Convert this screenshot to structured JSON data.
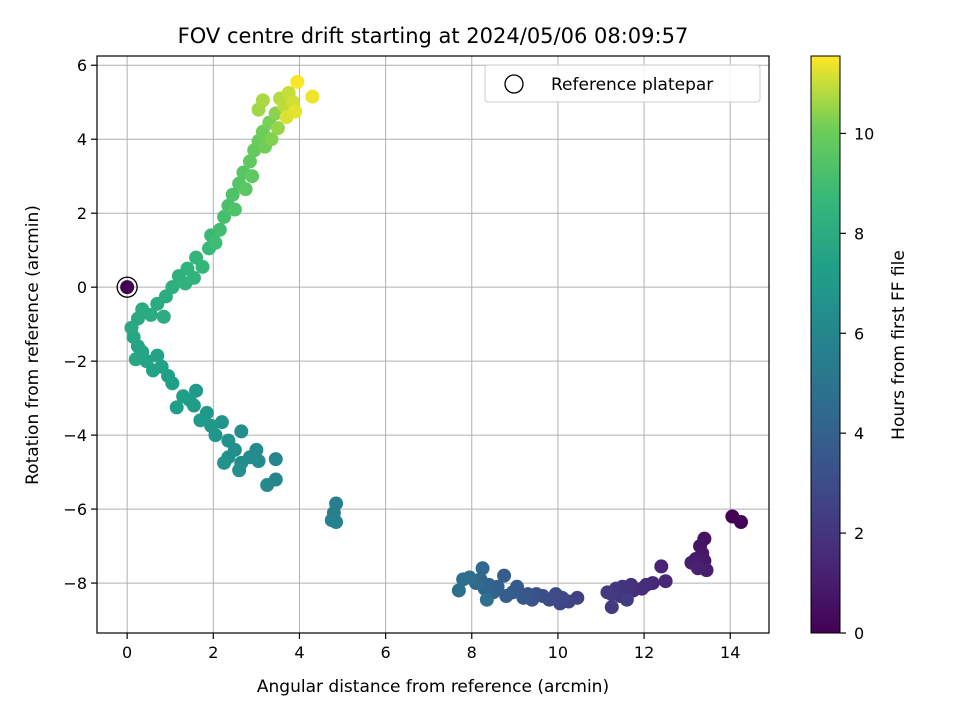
{
  "chart_data": {
    "type": "scatter",
    "title": "FOV centre drift starting at 2024/05/06 08:09:57",
    "xlabel": "Angular distance from reference (arcmin)",
    "ylabel": "Rotation from reference (arcmin)",
    "xlim": [
      -0.7,
      14.9
    ],
    "ylim": [
      -9.35,
      6.25
    ],
    "xticks": [
      0,
      2,
      4,
      6,
      8,
      10,
      12,
      14
    ],
    "yticks": [
      -8,
      -6,
      -4,
      -2,
      0,
      2,
      4,
      6
    ],
    "grid": true,
    "legend": {
      "placement": "top-right",
      "entries": [
        "Reference platepar"
      ]
    },
    "reference_point": {
      "x": 0,
      "y": 0
    },
    "colorbar": {
      "label": "Hours from first FF file",
      "min": 0,
      "max": 11.55,
      "ticks": [
        0,
        2,
        4,
        6,
        8,
        10
      ],
      "colormap": "viridis"
    },
    "series": [
      {
        "points": [
          [
            14.05,
            -6.2,
            0.05
          ],
          [
            14.25,
            -6.35,
            0.1
          ],
          [
            13.4,
            -6.8,
            0.6
          ],
          [
            13.3,
            -7.0,
            0.7
          ],
          [
            13.35,
            -7.2,
            0.8
          ],
          [
            13.4,
            -7.4,
            0.9
          ],
          [
            13.2,
            -7.35,
            1.0
          ],
          [
            13.1,
            -7.45,
            1.05
          ],
          [
            13.45,
            -7.65,
            1.1
          ],
          [
            13.25,
            -7.6,
            1.2
          ],
          [
            12.4,
            -7.55,
            1.3
          ],
          [
            12.5,
            -7.95,
            1.4
          ],
          [
            12.2,
            -8.0,
            1.5
          ],
          [
            12.05,
            -8.05,
            1.6
          ],
          [
            11.95,
            -8.15,
            1.7
          ],
          [
            11.75,
            -8.2,
            1.8
          ],
          [
            11.7,
            -8.05,
            1.85
          ],
          [
            11.6,
            -8.25,
            1.9
          ],
          [
            11.5,
            -8.1,
            1.95
          ],
          [
            11.45,
            -8.35,
            2.0
          ],
          [
            11.35,
            -8.15,
            2.1
          ],
          [
            11.25,
            -8.3,
            2.15
          ],
          [
            11.15,
            -8.25,
            2.2
          ],
          [
            11.25,
            -8.65,
            2.25
          ],
          [
            11.6,
            -8.45,
            2.3
          ],
          [
            10.45,
            -8.4,
            2.5
          ],
          [
            10.25,
            -8.5,
            2.6
          ],
          [
            10.05,
            -8.55,
            2.7
          ],
          [
            10.1,
            -8.4,
            2.8
          ],
          [
            9.95,
            -8.3,
            2.9
          ],
          [
            9.8,
            -8.45,
            3.0
          ],
          [
            9.65,
            -8.35,
            3.1
          ],
          [
            9.5,
            -8.3,
            3.2
          ],
          [
            9.4,
            -8.45,
            3.3
          ],
          [
            9.3,
            -8.3,
            3.4
          ],
          [
            9.2,
            -8.4,
            3.5
          ],
          [
            9.05,
            -8.1,
            3.6
          ],
          [
            8.95,
            -8.25,
            3.7
          ],
          [
            8.8,
            -8.35,
            3.8
          ],
          [
            8.75,
            -7.8,
            3.85
          ],
          [
            8.6,
            -8.1,
            3.9
          ],
          [
            8.5,
            -8.25,
            4.0
          ],
          [
            8.4,
            -8.05,
            4.1
          ],
          [
            8.3,
            -8.15,
            4.2
          ],
          [
            8.2,
            -7.9,
            4.3
          ],
          [
            8.25,
            -7.6,
            4.4
          ],
          [
            8.1,
            -8.0,
            4.5
          ],
          [
            7.95,
            -7.85,
            4.6
          ],
          [
            7.8,
            -7.9,
            4.7
          ],
          [
            7.7,
            -8.2,
            4.8
          ],
          [
            8.35,
            -8.45,
            4.85
          ],
          [
            4.85,
            -5.85,
            5.5
          ],
          [
            4.8,
            -6.1,
            5.6
          ],
          [
            4.75,
            -6.3,
            5.7
          ],
          [
            4.85,
            -6.35,
            5.75
          ],
          [
            3.45,
            -5.2,
            6.0
          ],
          [
            3.45,
            -4.65,
            6.05
          ],
          [
            3.25,
            -5.35,
            6.1
          ],
          [
            3.05,
            -4.7,
            6.2
          ],
          [
            3.0,
            -4.4,
            6.25
          ],
          [
            2.85,
            -4.6,
            6.3
          ],
          [
            2.65,
            -4.75,
            6.35
          ],
          [
            2.65,
            -3.9,
            6.4
          ],
          [
            2.5,
            -4.4,
            6.45
          ],
          [
            2.6,
            -4.95,
            6.5
          ],
          [
            2.35,
            -4.6,
            6.55
          ],
          [
            2.25,
            -4.75,
            6.6
          ],
          [
            2.35,
            -4.15,
            6.65
          ],
          [
            2.2,
            -3.65,
            6.7
          ],
          [
            2.05,
            -4.0,
            6.8
          ],
          [
            1.95,
            -3.75,
            6.85
          ],
          [
            1.85,
            -3.4,
            6.9
          ],
          [
            1.7,
            -3.6,
            7.0
          ],
          [
            1.6,
            -2.8,
            7.05
          ],
          [
            1.55,
            -3.2,
            7.1
          ],
          [
            1.45,
            -3.05,
            7.15
          ],
          [
            1.3,
            -2.95,
            7.2
          ],
          [
            1.15,
            -3.25,
            7.25
          ],
          [
            1.05,
            -2.6,
            7.3
          ],
          [
            0.95,
            -2.4,
            7.35
          ],
          [
            0.8,
            -2.15,
            7.4
          ],
          [
            0.7,
            -1.85,
            7.45
          ],
          [
            0.6,
            -2.25,
            7.5
          ],
          [
            0.45,
            -2.0,
            7.55
          ],
          [
            0.35,
            -1.75,
            7.6
          ],
          [
            0.25,
            -1.6,
            7.65
          ],
          [
            0.15,
            -1.35,
            7.7
          ],
          [
            0.2,
            -1.95,
            7.75
          ],
          [
            0.1,
            -1.1,
            7.8
          ],
          [
            0.25,
            -0.85,
            7.85
          ],
          [
            0.35,
            -0.6,
            7.9
          ],
          [
            0.55,
            -0.75,
            7.95
          ],
          [
            0.7,
            -0.45,
            8.0
          ],
          [
            0.85,
            -0.8,
            8.05
          ],
          [
            0.9,
            -0.25,
            8.1
          ],
          [
            1.05,
            0.0,
            8.2
          ],
          [
            1.2,
            0.3,
            8.3
          ],
          [
            1.35,
            0.1,
            8.35
          ],
          [
            1.4,
            0.5,
            8.4
          ],
          [
            1.55,
            0.25,
            8.45
          ],
          [
            1.6,
            0.8,
            8.5
          ],
          [
            1.75,
            0.55,
            8.6
          ],
          [
            1.9,
            1.05,
            8.7
          ],
          [
            1.95,
            1.4,
            8.8
          ],
          [
            2.05,
            1.2,
            8.9
          ],
          [
            2.15,
            1.55,
            9.0
          ],
          [
            2.25,
            1.9,
            9.1
          ],
          [
            2.35,
            2.2,
            9.2
          ],
          [
            2.45,
            2.5,
            9.3
          ],
          [
            2.5,
            2.1,
            9.35
          ],
          [
            2.6,
            2.8,
            9.45
          ],
          [
            2.7,
            3.1,
            9.55
          ],
          [
            2.75,
            2.65,
            9.6
          ],
          [
            2.85,
            3.4,
            9.7
          ],
          [
            2.9,
            3.0,
            9.75
          ],
          [
            2.95,
            3.7,
            9.85
          ],
          [
            3.05,
            3.95,
            9.95
          ],
          [
            3.15,
            4.2,
            10.05
          ],
          [
            3.2,
            3.8,
            10.1
          ],
          [
            3.3,
            4.45,
            10.2
          ],
          [
            3.35,
            4.0,
            10.3
          ],
          [
            3.45,
            4.7,
            10.4
          ],
          [
            3.5,
            4.3,
            10.5
          ],
          [
            3.05,
            4.8,
            10.6
          ],
          [
            3.15,
            5.05,
            10.7
          ],
          [
            3.55,
            5.1,
            10.8
          ],
          [
            3.65,
            4.9,
            10.9
          ],
          [
            3.75,
            5.25,
            11.0
          ],
          [
            3.85,
            5.0,
            11.1
          ],
          [
            3.7,
            4.6,
            11.2
          ],
          [
            3.9,
            4.75,
            11.3
          ],
          [
            4.3,
            5.15,
            11.4
          ],
          [
            3.95,
            5.55,
            11.5
          ]
        ]
      }
    ]
  }
}
